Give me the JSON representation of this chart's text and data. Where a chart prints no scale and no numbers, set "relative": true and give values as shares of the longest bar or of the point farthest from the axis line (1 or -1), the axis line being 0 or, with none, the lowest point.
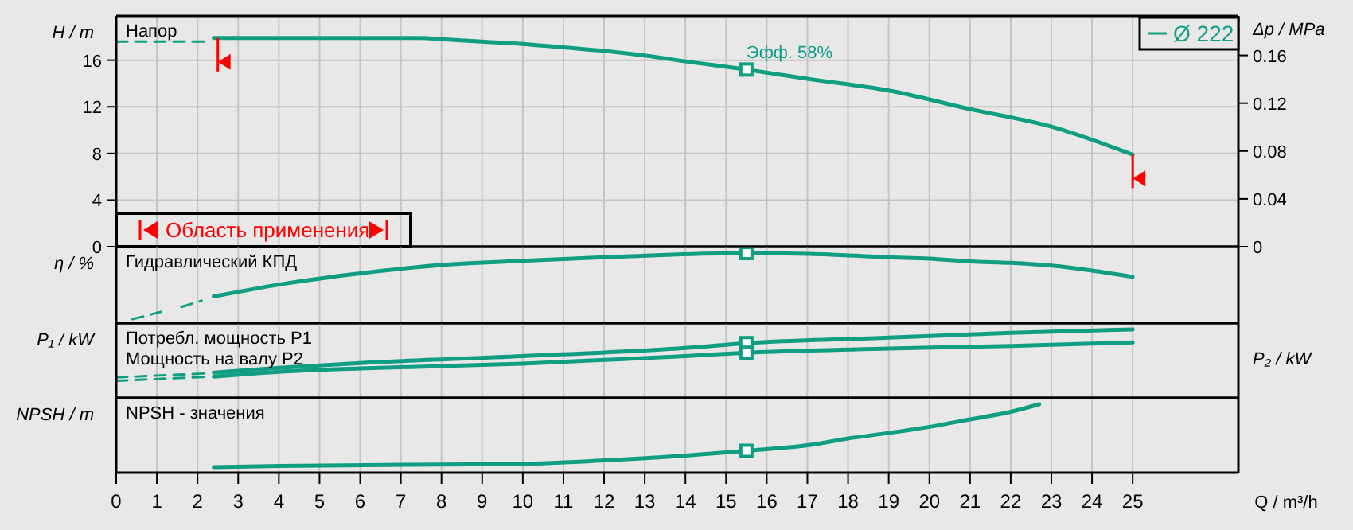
{
  "chart_data": [
    {
      "type": "line",
      "ylabel": "H / m",
      "y2label": "Δp / MPa",
      "xlim": [
        0,
        27.6
      ],
      "xticks": [
        0,
        1,
        2,
        3,
        4,
        5,
        6,
        7,
        8,
        9,
        10,
        11,
        12,
        13,
        14,
        15,
        16,
        17,
        18,
        19,
        20,
        21,
        22,
        23,
        24,
        25
      ],
      "ylim": [
        0,
        19.8
      ],
      "yticks": [
        0,
        4,
        8,
        12,
        16
      ],
      "y2lim": [
        0,
        0.193
      ],
      "y2ticks": [
        0,
        0.04,
        0.08,
        0.12,
        0.16
      ],
      "grid": true,
      "legend": "top right",
      "tick_labels": "y",
      "series": [
        {
          "name": "Ø 222",
          "color": "#0f9e83",
          "x": [
            2.4,
            4,
            6,
            7.5,
            8,
            9,
            10,
            11,
            12,
            13,
            14,
            15.5,
            17,
            19,
            21,
            23,
            25
          ],
          "values": [
            17.9,
            17.9,
            17.9,
            17.9,
            17.8,
            17.6,
            17.4,
            17.1,
            16.8,
            16.4,
            15.9,
            15.2,
            14.4,
            13.4,
            11.8,
            10.3,
            7.9
          ]
        },
        {
          "color": "#0f9e83",
          "line_style": "dashed",
          "x": [
            0,
            2.3
          ],
          "values": [
            17.6,
            17.6
          ]
        },
        {
          "type": "scatter",
          "marker": "square",
          "color": "#0f9e83",
          "x": [
            15.5
          ],
          "values": [
            15.2
          ]
        }
      ],
      "annotations": [
        "Напор",
        "Область применения",
        {
          "text": "Эфф. 58%",
          "x": 15.5,
          "y": 15.2
        }
      ],
      "ref_lines": [
        {
          "axis": "x",
          "value": 2.5,
          "color": "#ff0000"
        },
        {
          "axis": "x",
          "value": 25,
          "color": "#ff0000"
        }
      ]
    },
    {
      "type": "line",
      "relative": true,
      "ylabel": "η / %",
      "xlim": [
        0,
        27.6
      ],
      "xticks": [
        0,
        1,
        2,
        3,
        4,
        5,
        6,
        7,
        8,
        9,
        10,
        11,
        12,
        13,
        14,
        15,
        16,
        17,
        18,
        19,
        20,
        21,
        22,
        23,
        24,
        25
      ],
      "grid": "x",
      "tick_labels": false,
      "series": [
        {
          "color": "#0f9e83",
          "x": [
            2.4,
            4,
            6,
            8,
            10,
            12,
            13.8,
            15.5,
            17,
            19,
            20,
            21,
            22,
            23,
            24,
            25
          ],
          "values": [
            0.38,
            0.55,
            0.71,
            0.83,
            0.89,
            0.94,
            0.98,
            1,
            0.99,
            0.94,
            0.92,
            0.88,
            0.86,
            0.82,
            0.75,
            0.66
          ]
        },
        {
          "color": "#0f9e83",
          "line_style": "dashed",
          "x": [
            0.4,
            1.1,
            1.35,
            1.6,
            2.1
          ],
          "values": [
            0.055,
            0.16,
            null,
            0.23,
            0.32
          ]
        },
        {
          "type": "scatter",
          "marker": "square",
          "color": "#0f9e83",
          "x": [
            15.5
          ],
          "values": [
            1
          ]
        }
      ],
      "annotations": [
        "Гидравлический КПД"
      ]
    },
    {
      "type": "line",
      "relative": true,
      "ylabel": "P₁ / kW",
      "y2label": "P₂ / kW",
      "xlim": [
        0,
        27.6
      ],
      "xticks": [
        0,
        1,
        2,
        3,
        4,
        5,
        6,
        7,
        8,
        9,
        10,
        11,
        12,
        13,
        14,
        15,
        16,
        17,
        18,
        19,
        20,
        21,
        22,
        23,
        24,
        25
      ],
      "grid": "x",
      "tick_labels": false,
      "series": [
        {
          "color": "#0f9e83",
          "x": [
            2.4,
            4,
            6,
            10,
            14,
            15.5,
            19,
            22,
            25
          ],
          "values": [
            0.37,
            0.44,
            0.51,
            0.61,
            0.73,
            0.8,
            0.88,
            0.95,
            1
          ]
        },
        {
          "color": "#0f9e83",
          "x": [
            2.4,
            4,
            6,
            10,
            14,
            15.5,
            19,
            22,
            25
          ],
          "values": [
            0.31,
            0.38,
            0.43,
            0.5,
            0.61,
            0.66,
            0.72,
            0.76,
            0.81
          ]
        },
        {
          "color": "#0f9e83",
          "line_style": "dashed",
          "x": [
            0,
            2.3
          ],
          "values": [
            0.3,
            0.36
          ]
        },
        {
          "color": "#0f9e83",
          "line_style": "dashed",
          "x": [
            0,
            2.3
          ],
          "values": [
            0.25,
            0.31
          ]
        },
        {
          "type": "scatter",
          "marker": "square",
          "color": "#0f9e83",
          "x": [
            15.5,
            15.5
          ],
          "values": [
            0.8,
            0.66
          ]
        }
      ],
      "annotations": [
        "Потребл. мощность P1",
        "Мощность на валу P2"
      ]
    },
    {
      "type": "line",
      "relative": true,
      "ylabel": "NPSH / m",
      "xlabel": "Q / m³/h",
      "xlim": [
        0,
        27.6
      ],
      "xticks": [
        0,
        1,
        2,
        3,
        4,
        5,
        6,
        7,
        8,
        9,
        10,
        11,
        12,
        13,
        14,
        15,
        16,
        17,
        18,
        19,
        20,
        21,
        22,
        23,
        24,
        25
      ],
      "grid": "x",
      "tick_labels": "x",
      "series": [
        {
          "color": "#0f9e83",
          "x": [
            2.4,
            4,
            8,
            10,
            12,
            14,
            15.5,
            17,
            18,
            19,
            20,
            21,
            22,
            22.7
          ],
          "values": [
            0.08,
            0.1,
            0.12,
            0.13,
            0.18,
            0.25,
            0.32,
            0.4,
            0.5,
            0.58,
            0.67,
            0.78,
            0.89,
            1
          ]
        },
        {
          "type": "scatter",
          "marker": "square",
          "color": "#0f9e83",
          "x": [
            15.5
          ],
          "values": [
            0.32
          ]
        }
      ],
      "annotations": [
        "NPSH - значения"
      ]
    }
  ]
}
